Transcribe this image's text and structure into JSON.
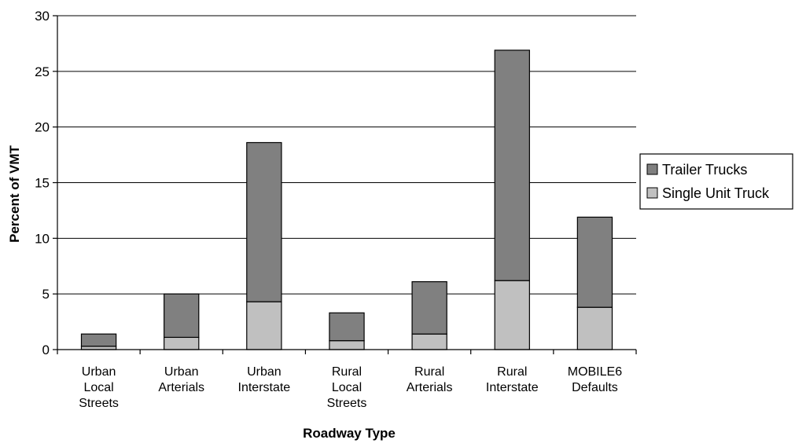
{
  "chart_data": {
    "type": "bar",
    "stacked": true,
    "title": "",
    "xlabel": "Roadway Type",
    "ylabel": "Percent of VMT",
    "ylim": [
      0,
      30
    ],
    "yticks": [
      0,
      5,
      10,
      15,
      20,
      25,
      30
    ],
    "grid": true,
    "legend_position": "right",
    "categories": [
      [
        "Urban",
        "Local",
        "Streets"
      ],
      [
        "Urban",
        "Arterials"
      ],
      [
        "Urban",
        "Interstate"
      ],
      [
        "Rural",
        "Local",
        "Streets"
      ],
      [
        "Rural",
        "Arterials"
      ],
      [
        "Rural",
        "Interstate"
      ],
      [
        "MOBILE6",
        "Defaults"
      ]
    ],
    "series": [
      {
        "name": "Single Unit Truck",
        "color": "#c0c0c0",
        "values": [
          0.3,
          1.1,
          4.3,
          0.8,
          1.4,
          6.2,
          3.8
        ]
      },
      {
        "name": "Trailer Trucks",
        "color": "#808080",
        "values": [
          1.1,
          3.9,
          14.3,
          2.5,
          4.7,
          20.7,
          8.1
        ]
      }
    ],
    "legend_order": [
      "Trailer Trucks",
      "Single Unit Truck"
    ]
  }
}
